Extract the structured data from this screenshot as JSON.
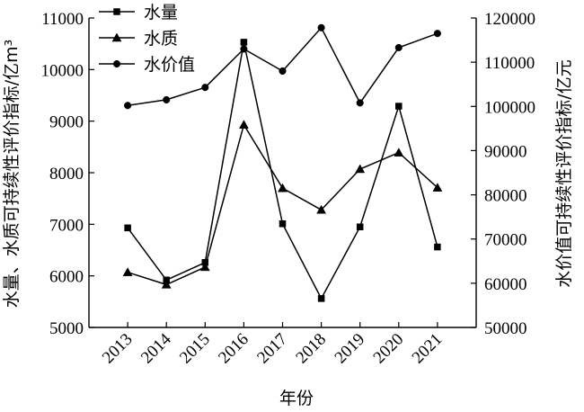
{
  "chart_data": {
    "type": "line",
    "x": [
      "2013",
      "2014",
      "2015",
      "2016",
      "2017",
      "2018",
      "2019",
      "2020",
      "2021"
    ],
    "xlabel": "年份",
    "ylabel_left": "水量、水质可持续性评价指标/亿m³",
    "ylabel_right": "水价值可持续性评价指标/亿元",
    "ylim_left": [
      5000,
      11000
    ],
    "yticks_left": [
      5000,
      6000,
      7000,
      8000,
      9000,
      10000,
      11000
    ],
    "ylim_right": [
      50000,
      120000
    ],
    "yticks_right": [
      50000,
      60000,
      70000,
      80000,
      90000,
      100000,
      110000,
      120000
    ],
    "legend_position": "top-left",
    "grid": false,
    "series": [
      {
        "name": "水量",
        "axis": "left",
        "marker": "square",
        "values": [
          6930,
          5920,
          6260,
          10530,
          7010,
          5560,
          6950,
          9290,
          6560
        ]
      },
      {
        "name": "水质",
        "axis": "left",
        "marker": "triangle",
        "values": [
          6070,
          5830,
          6170,
          8930,
          7700,
          7280,
          8070,
          8390,
          7710
        ]
      },
      {
        "name": "水价值",
        "axis": "right",
        "marker": "circle",
        "values": [
          100200,
          101500,
          104300,
          113000,
          108000,
          117800,
          100800,
          113300,
          116500
        ]
      }
    ]
  }
}
